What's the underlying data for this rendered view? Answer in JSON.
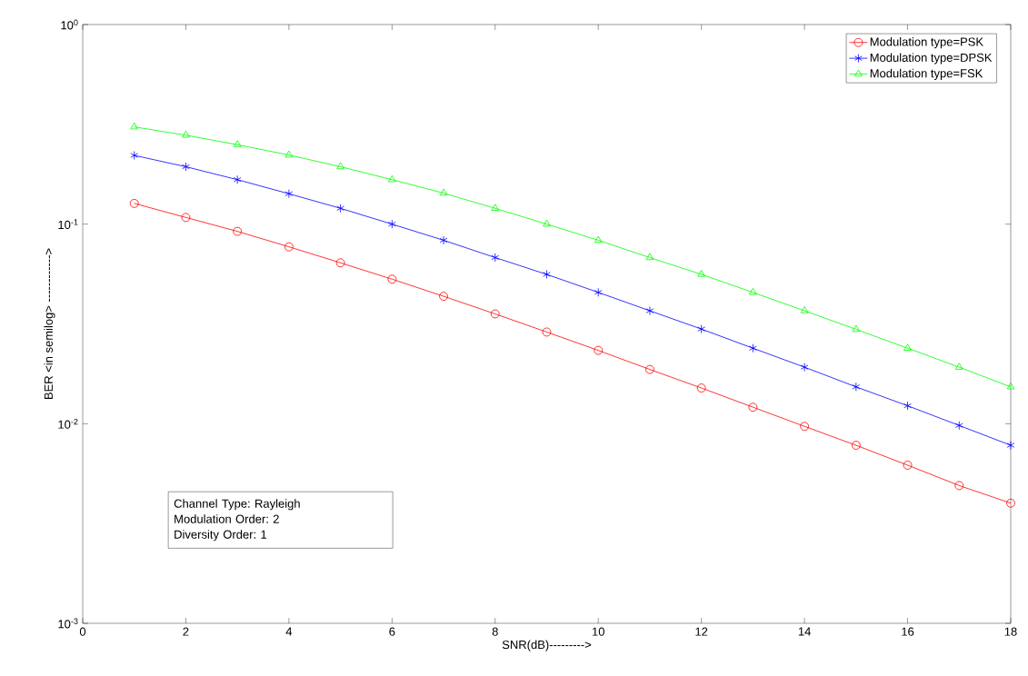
{
  "chart_data": {
    "type": "line",
    "xlabel": "SNR(dB)--------->",
    "ylabel": "BER <in semilog> ------------>",
    "x": [
      1,
      2,
      3,
      4,
      5,
      6,
      7,
      8,
      9,
      10,
      11,
      12,
      13,
      14,
      15,
      16,
      17,
      18
    ],
    "series": [
      {
        "name": "Modulation type=PSK",
        "color": "#ff0000",
        "marker": "circle",
        "values": [
          0.127,
          0.108,
          0.092,
          0.077,
          0.064,
          0.053,
          0.0435,
          0.0355,
          0.0288,
          0.0233,
          0.0187,
          0.0151,
          0.0121,
          0.0097,
          0.0078,
          0.0062,
          0.0049,
          0.004
        ]
      },
      {
        "name": "Modulation type=DPSK",
        "color": "#0000ff",
        "marker": "cross",
        "values": [
          0.221,
          0.194,
          0.167,
          0.142,
          0.12,
          0.1,
          0.083,
          0.068,
          0.056,
          0.0455,
          0.0368,
          0.0298,
          0.0239,
          0.0192,
          0.0153,
          0.0123,
          0.0098,
          0.0078
        ]
      },
      {
        "name": "Modulation type=FSK",
        "color": "#00ff00",
        "marker": "triangle",
        "values": [
          0.307,
          0.279,
          0.25,
          0.222,
          0.194,
          0.167,
          0.143,
          0.12,
          0.1,
          0.083,
          0.068,
          0.056,
          0.0455,
          0.0368,
          0.0297,
          0.0239,
          0.0192,
          0.0153
        ]
      }
    ],
    "log": "y",
    "xlim": [
      0,
      18
    ],
    "ylim": [
      0.001,
      1
    ],
    "xticks": [
      0,
      2,
      4,
      6,
      8,
      10,
      12,
      14,
      16,
      18
    ],
    "yticks": [
      {
        "value": 0.001,
        "label": "10$^{-3}$"
      },
      {
        "value": 0.01,
        "label": "10$^{-2}$"
      },
      {
        "value": 0.1,
        "label": "10$^{-1}$"
      },
      {
        "value": 1,
        "label": "10$^{0}$"
      }
    ],
    "legend": "top right",
    "line_style": "solid",
    "annotations": [
      "Channel Type: Rayleigh",
      "Modulation Order: 2",
      "Diversity Order: 1"
    ]
  }
}
